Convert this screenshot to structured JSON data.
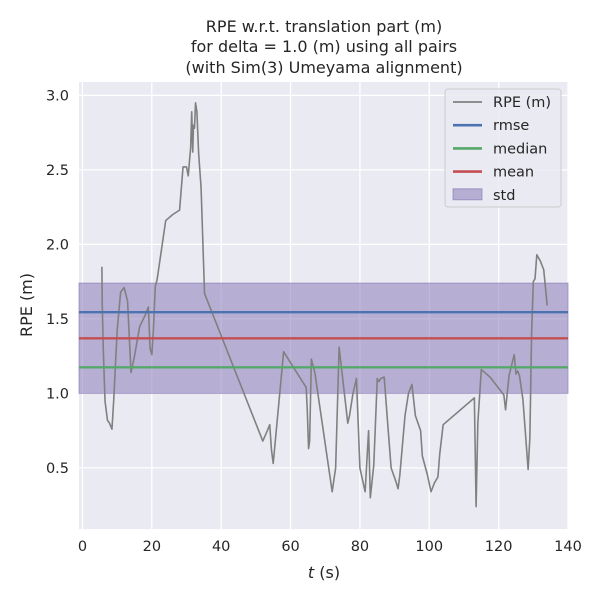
{
  "chart_data": {
    "type": "line",
    "title_lines": [
      "RPE w.r.t. translation part (m)",
      "for delta = 1.0 (m) using all pairs",
      "(with Sim(3) Umeyama alignment)"
    ],
    "xlabel_var": "t",
    "xlabel_unit": " (s)",
    "ylabel": "RPE (m)",
    "xlim": [
      -1,
      140
    ],
    "ylim": [
      0.09,
      3.09
    ],
    "xticks": [
      0,
      20,
      40,
      60,
      80,
      100,
      120,
      140
    ],
    "yticks": [
      0.5,
      1.0,
      1.5,
      2.0,
      2.5,
      3.0
    ],
    "ytick_labels": [
      "0.5",
      "1.0",
      "1.5",
      "2.0",
      "2.5",
      "3.0"
    ],
    "grid": true,
    "legend_position": "top-right",
    "series": [
      {
        "name": "RPE (m)",
        "color": "#808080",
        "x": [
          5.6,
          5.7,
          6.0,
          6.5,
          7.2,
          7.8,
          8.5,
          9.0,
          10.0,
          11.0,
          12.0,
          13.0,
          14.0,
          15.0,
          16.5,
          18.0,
          19.0,
          19.5,
          20.0,
          20.5,
          21.0,
          21.5,
          24.0,
          26.0,
          28.0,
          29.0,
          30.0,
          30.5,
          31.0,
          31.2,
          31.5,
          31.8,
          32.0,
          32.3,
          32.6,
          33.0,
          33.5,
          34.2,
          35.2,
          52.0,
          53.3,
          54.0,
          54.5,
          55.0,
          58.0,
          64.5,
          64.8,
          65.2,
          65.5,
          66.0,
          67.0,
          72.0,
          73.0,
          74.0,
          76.5,
          77.0,
          78.0,
          79.0,
          80.0,
          81.5,
          82.5,
          83.0,
          84.0,
          85.0,
          85.5,
          86.0,
          87.0,
          88.0,
          89.0,
          90.5,
          91.0,
          91.5,
          93.0,
          94.0,
          95.0,
          96.0,
          97.5,
          98.0,
          99.5,
          100.5,
          101.5,
          102.5,
          103.0,
          104.0,
          113.0,
          113.5,
          114.0,
          115.0,
          116.0,
          117.5,
          121.5,
          122.0,
          123.0,
          124.5,
          125.0,
          125.5,
          126.0,
          127.0,
          128.5,
          129.0,
          129.5,
          130.0,
          130.5,
          131.0,
          132.0,
          133.0,
          134.0
        ],
        "y": [
          1.85,
          1.6,
          1.3,
          0.95,
          0.82,
          0.8,
          0.76,
          0.95,
          1.42,
          1.68,
          1.71,
          1.62,
          1.14,
          1.25,
          1.45,
          1.52,
          1.58,
          1.3,
          1.26,
          1.45,
          1.72,
          1.76,
          2.16,
          2.2,
          2.23,
          2.52,
          2.52,
          2.46,
          2.6,
          2.65,
          2.89,
          2.62,
          2.8,
          2.78,
          2.95,
          2.89,
          2.61,
          2.38,
          1.67,
          0.68,
          0.75,
          0.79,
          0.62,
          0.53,
          1.28,
          1.04,
          0.9,
          0.63,
          0.68,
          1.23,
          1.14,
          0.34,
          0.5,
          1.31,
          0.8,
          0.85,
          1.0,
          1.1,
          0.5,
          0.34,
          0.75,
          0.3,
          0.52,
          1.1,
          1.08,
          1.1,
          1.11,
          0.8,
          0.5,
          0.4,
          0.36,
          0.45,
          0.85,
          1.0,
          1.06,
          0.85,
          0.75,
          0.58,
          0.45,
          0.34,
          0.4,
          0.44,
          0.59,
          0.79,
          0.97,
          0.24,
          0.8,
          1.16,
          1.14,
          1.11,
          0.99,
          0.89,
          1.12,
          1.26,
          1.13,
          1.15,
          1.12,
          0.96,
          0.49,
          0.7,
          1.4,
          1.75,
          1.77,
          1.93,
          1.89,
          1.83,
          1.59
        ]
      },
      {
        "name": "rmse",
        "color": "#4c72b0",
        "value": 1.545
      },
      {
        "name": "median",
        "color": "#55a868",
        "value": 1.175
      },
      {
        "name": "mean",
        "color": "#c44e52",
        "value": 1.37
      },
      {
        "name": "std",
        "color": "#8172b3",
        "band": [
          1.0,
          1.74
        ]
      }
    ]
  }
}
